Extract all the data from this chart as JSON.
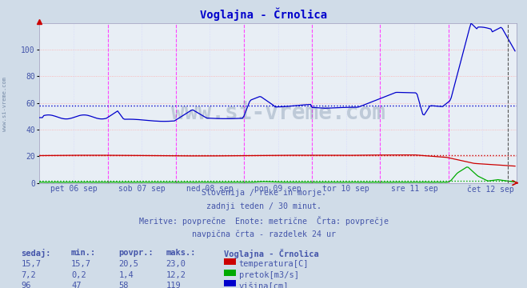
{
  "title": "Voglajna - Črnolica",
  "title_color": "#0000cc",
  "bg_color": "#d0dce8",
  "plot_bg_color": "#e8eef5",
  "grid_h_color": "#ffaaaa",
  "grid_v_color": "#ccccff",
  "text_color": "#4455aa",
  "ylim": [
    0,
    120
  ],
  "yticks": [
    0,
    20,
    40,
    60,
    80,
    100
  ],
  "n_points": 336,
  "days": [
    "pet 06 sep",
    "sob 07 sep",
    "ned 08 sep",
    "pon 09 sep",
    "tor 10 sep",
    "sre 11 sep",
    "čet 12 sep"
  ],
  "avg_blue": 58,
  "avg_red": 20.5,
  "avg_green": 1.4,
  "text1": "Slovenija / reke in morje.",
  "text2": "zadnji teden / 30 minut.",
  "text3": "Meritve: povprečne  Enote: metrične  Črta: povprečje",
  "text4": "navpična črta - razdelek 24 ur",
  "table_header": [
    "sedaj:",
    "min.:",
    "povpr.:",
    "maks.:",
    "Voglajna - Črnolica"
  ],
  "table_row1": [
    "15,7",
    "15,7",
    "20,5",
    "23,0",
    "temperatura[C]"
  ],
  "table_row2": [
    "7,2",
    "0,2",
    "1,4",
    "12,2",
    "pretok[m3/s]"
  ],
  "table_row3": [
    "96",
    "47",
    "58",
    "119",
    "višina[cm]"
  ],
  "color_temp": "#cc0000",
  "color_flow": "#00aa00",
  "color_height": "#0000cc",
  "watermark": "www.si-vreme.com",
  "watermark_color": "#607898",
  "sidebar_text": "www.si-vreme.com",
  "sidebar_color": "#607898"
}
